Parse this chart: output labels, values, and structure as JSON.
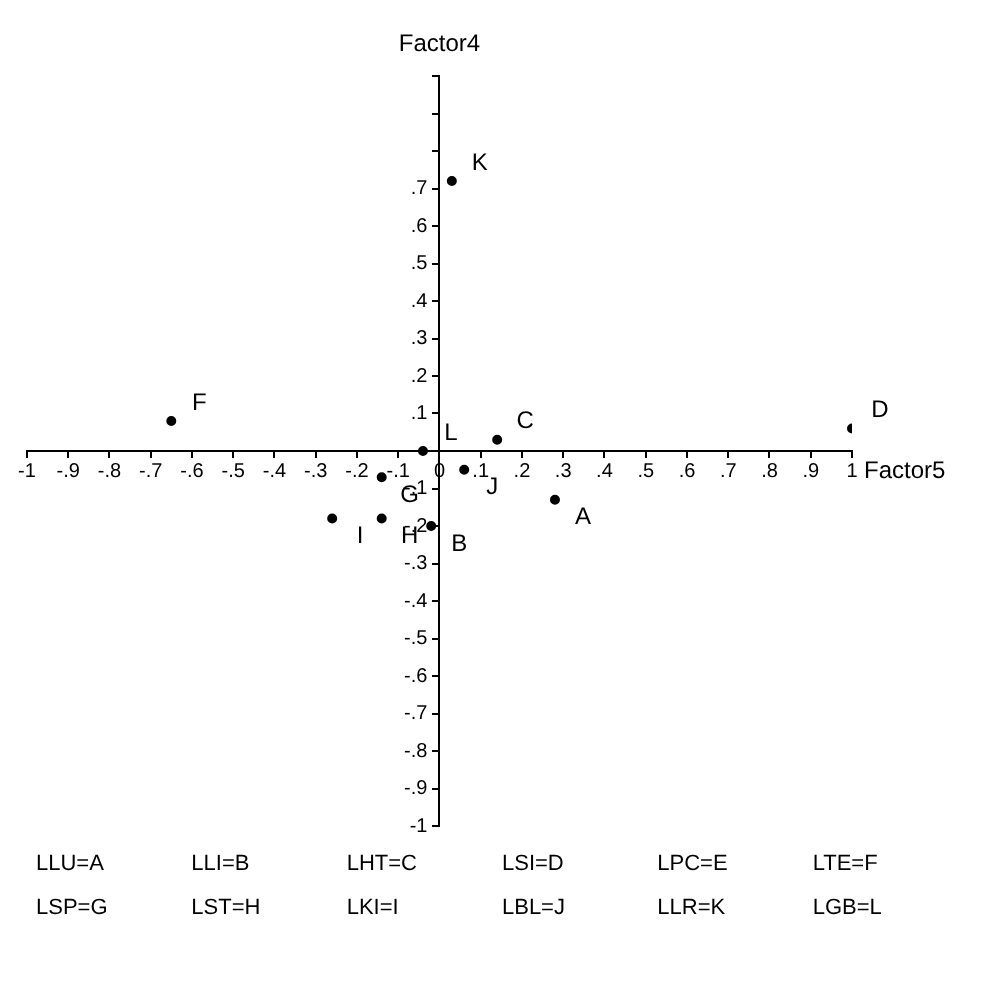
{
  "chart_data": {
    "type": "scatter",
    "xlabel": "Factor5",
    "ylabel": "Factor4",
    "marker": "circle",
    "grid": false,
    "legend": false,
    "xlim": [
      -1,
      1
    ],
    "ylim": [
      -1,
      1
    ],
    "xticks": [
      {
        "value": -1,
        "label": "-1"
      },
      {
        "value": -0.9,
        "label": "-.9"
      },
      {
        "value": -0.8,
        "label": "-.8"
      },
      {
        "value": -0.7,
        "label": "-.7"
      },
      {
        "value": -0.6,
        "label": "-.6"
      },
      {
        "value": -0.5,
        "label": "-.5"
      },
      {
        "value": -0.4,
        "label": "-.4"
      },
      {
        "value": -0.3,
        "label": "-.3"
      },
      {
        "value": -0.2,
        "label": "-.2"
      },
      {
        "value": -0.1,
        "label": "-.1"
      },
      0,
      {
        "value": 0.1,
        "label": ".1"
      },
      {
        "value": 0.2,
        "label": ".2"
      },
      {
        "value": 0.3,
        "label": ".3"
      },
      {
        "value": 0.4,
        "label": ".4"
      },
      {
        "value": 0.5,
        "label": ".5"
      },
      {
        "value": 0.6,
        "label": ".6"
      },
      {
        "value": 0.7,
        "label": ".7"
      },
      {
        "value": 0.8,
        "label": ".8"
      },
      {
        "value": 0.9,
        "label": ".9"
      },
      1
    ],
    "yticks": [
      {
        "value": -1,
        "label": "-1"
      },
      {
        "value": -0.9,
        "label": "-.9"
      },
      {
        "value": -0.8,
        "label": "-.8"
      },
      {
        "value": -0.7,
        "label": "-.7"
      },
      {
        "value": -0.6,
        "label": "-.6"
      },
      {
        "value": -0.5,
        "label": "-.5"
      },
      {
        "value": -0.4,
        "label": "-.4"
      },
      {
        "value": -0.3,
        "label": "-.3"
      },
      {
        "value": -0.2,
        "label": "-.2"
      },
      {
        "value": -0.1,
        "label": "-.1"
      },
      {
        "value": 0,
        "label": null
      },
      {
        "value": 0.1,
        "label": ".1"
      },
      {
        "value": 0.2,
        "label": ".2"
      },
      {
        "value": 0.3,
        "label": ".3"
      },
      {
        "value": 0.4,
        "label": ".4"
      },
      {
        "value": 0.5,
        "label": ".5"
      },
      {
        "value": 0.6,
        "label": ".6"
      },
      {
        "value": 0.7,
        "label": ".7"
      },
      {
        "value": 0.8,
        "label": null
      },
      {
        "value": 0.9,
        "label": null
      },
      {
        "value": 1,
        "label": null
      }
    ],
    "series": [
      {
        "name": "A",
        "color": "#000000",
        "x": [
          0.28
        ],
        "values": [
          -0.13
        ]
      },
      {
        "name": "B",
        "color": "#000000",
        "x": [
          -0.02
        ],
        "values": [
          -0.2
        ]
      },
      {
        "name": "C",
        "color": "#000000",
        "x": [
          0.14
        ],
        "values": [
          0.03
        ]
      },
      {
        "name": "D",
        "color": "#000000",
        "x": [
          1.0
        ],
        "values": [
          0.06
        ]
      },
      {
        "name": "F",
        "color": "#000000",
        "x": [
          -0.65
        ],
        "values": [
          0.08
        ]
      },
      {
        "name": "G",
        "color": "#000000",
        "x": [
          -0.14
        ],
        "values": [
          -0.07
        ]
      },
      {
        "name": "H",
        "color": "#000000",
        "x": [
          -0.14
        ],
        "values": [
          -0.18
        ]
      },
      {
        "name": "I",
        "color": "#000000",
        "x": [
          -0.26
        ],
        "values": [
          -0.18
        ]
      },
      {
        "name": "J",
        "color": "#000000",
        "x": [
          0.06
        ],
        "values": [
          -0.05
        ]
      },
      {
        "name": "K",
        "color": "#000000",
        "x": [
          0.03
        ],
        "values": [
          0.72
        ]
      },
      {
        "name": "L",
        "color": "#000000",
        "x": [
          -0.04
        ],
        "values": [
          0
        ]
      }
    ],
    "annotations": [
      "LLU=A",
      "LLI=B",
      "LHT=C",
      "LSI=D",
      "LPC=E",
      "LTE=F",
      "LSP=G",
      "LST=H",
      "LKI=I",
      "LBL=J",
      "LLR=K",
      "LGB=L"
    ]
  }
}
